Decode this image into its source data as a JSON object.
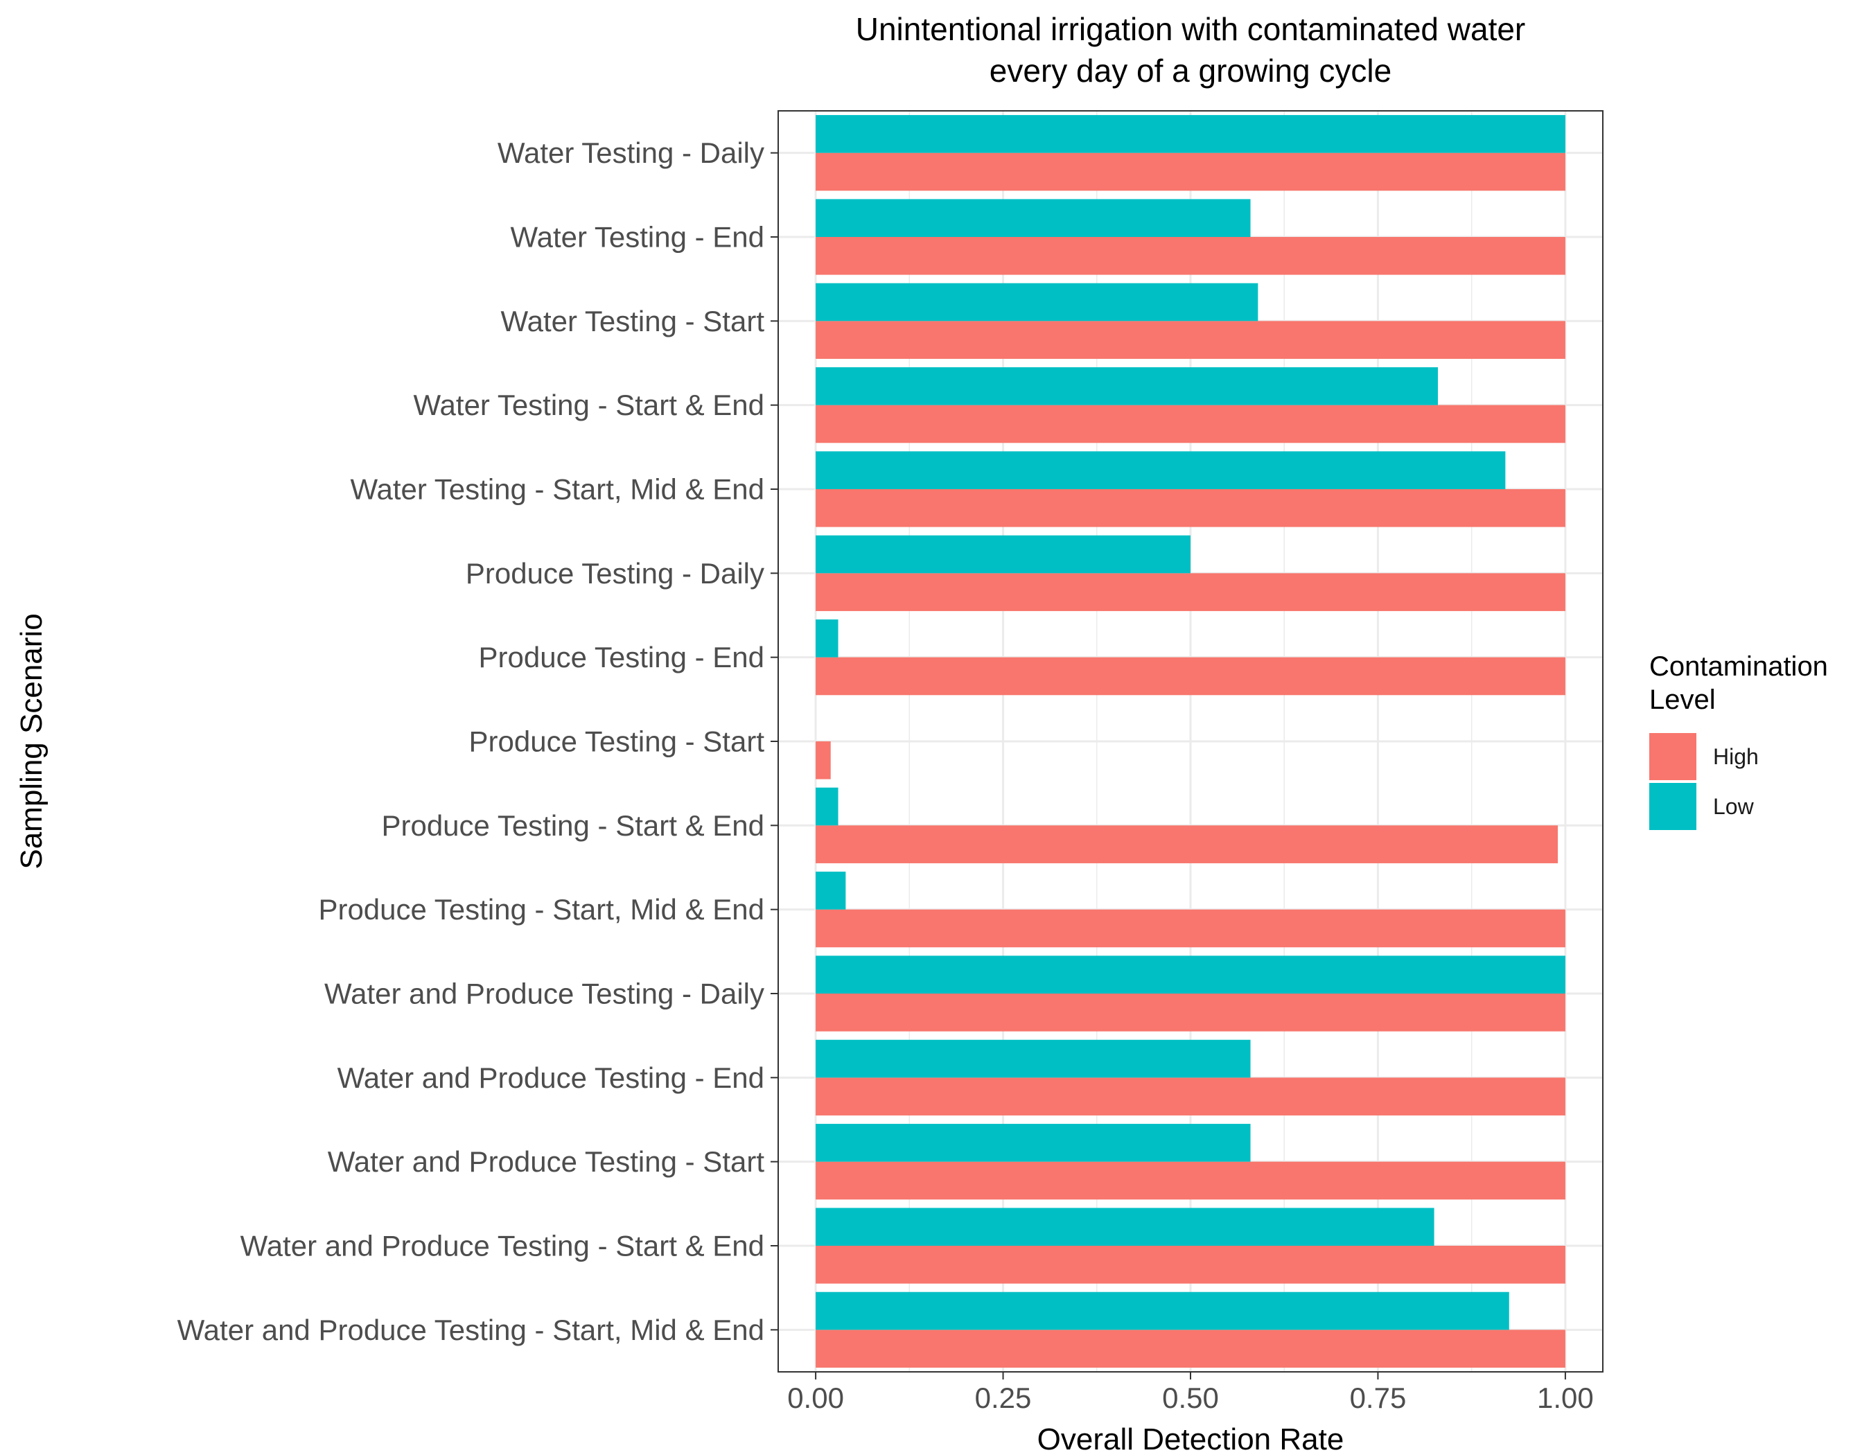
{
  "chart_data": {
    "type": "bar",
    "orientation": "horizontal",
    "title_lines": [
      "Unintentional irrigation with contaminated water",
      "every day of a growing cycle"
    ],
    "xlabel": "Overall Detection Rate",
    "ylabel": "Sampling Scenario",
    "xlim": [
      -0.05,
      1.05
    ],
    "x_ticks": [
      0.0,
      0.25,
      0.5,
      0.75,
      1.0
    ],
    "x_tick_labels": [
      "0.00",
      "0.25",
      "0.50",
      "0.75",
      "1.00"
    ],
    "grid": true,
    "categories": [
      "Water Testing - Daily",
      "Water Testing -  End",
      "Water Testing -  Start",
      "Water Testing - Start & End",
      "Water Testing - Start, Mid & End",
      "Produce Testing - Daily",
      "Produce Testing - End",
      "Produce Testing - Start",
      "Produce Testing - Start & End",
      "Produce Testing - Start, Mid & End",
      "Water and Produce Testing - Daily",
      "Water and Produce Testing - End",
      "Water and Produce Testing - Start",
      "Water and Produce Testing - Start & End",
      "Water and Produce Testing - Start, Mid & End"
    ],
    "series": [
      {
        "name": "High",
        "color": "#F8766D",
        "values": [
          1.0,
          1.0,
          1.0,
          1.0,
          1.0,
          1.0,
          1.0,
          0.02,
          0.99,
          1.0,
          1.0,
          1.0,
          1.0,
          1.0,
          1.0
        ]
      },
      {
        "name": "Low",
        "color": "#00BFC4",
        "values": [
          1.0,
          0.58,
          0.59,
          0.83,
          0.92,
          0.5,
          0.03,
          0.0,
          0.03,
          0.04,
          1.0,
          0.58,
          0.58,
          0.825,
          0.925
        ]
      }
    ],
    "legend": {
      "title_lines": [
        "Contamination",
        "Level"
      ],
      "position": "right"
    }
  }
}
